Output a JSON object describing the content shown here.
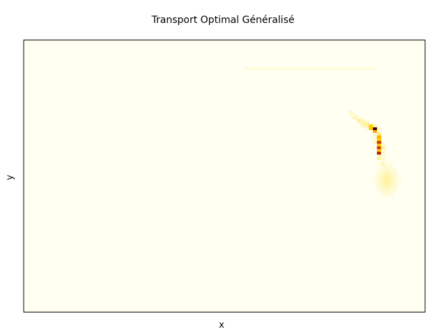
{
  "chart_data": {
    "type": "heatmap",
    "title": "Transport Optimal Généralisé",
    "xlabel": "x",
    "ylabel": "y",
    "ticks": false,
    "colormap": "hot_r",
    "colors": {
      "background": "#fffff2",
      "frame": "#000000",
      "ramp": [
        "#fffff0",
        "#fff19a",
        "#ffd000",
        "#ff8c00",
        "#cc1f00",
        "#6b0000",
        "#000000"
      ]
    },
    "grid_size": [
      100,
      100
    ],
    "max_value": 1.0,
    "features": [
      {
        "kind": "spot",
        "x": 88.8,
        "y": 60.8,
        "intensity": 1.0
      },
      {
        "kind": "spot",
        "x": 88.7,
        "y": 58.8,
        "intensity": 0.95
      },
      {
        "kind": "spot",
        "x": 88.3,
        "y": 62.8,
        "intensity": 0.85
      },
      {
        "kind": "spot",
        "x": 88.3,
        "y": 64.8,
        "intensity": 0.55
      },
      {
        "kind": "spot",
        "x": 87.7,
        "y": 66.8,
        "intensity": 0.35
      },
      {
        "kind": "spot",
        "x": 87.6,
        "y": 67.4,
        "intensity": 0.8
      },
      {
        "kind": "spot",
        "x": 86.3,
        "y": 68.0,
        "intensity": 0.6
      },
      {
        "kind": "spot",
        "x": 85.0,
        "y": 69.1,
        "intensity": 0.45
      },
      {
        "kind": "spot",
        "x": 83.9,
        "y": 70.5,
        "intensity": 0.3
      },
      {
        "kind": "spot",
        "x": 82.6,
        "y": 71.8,
        "intensity": 0.18
      },
      {
        "kind": "spot",
        "x": 81.5,
        "y": 73.2,
        "intensity": 0.1
      },
      {
        "kind": "spot",
        "x": 88.8,
        "y": 56.8,
        "intensity": 0.25
      },
      {
        "kind": "spot",
        "x": 89.3,
        "y": 54.7,
        "intensity": 0.12
      },
      {
        "kind": "blob",
        "x": 90.5,
        "y": 48.5,
        "intensity": 0.15
      },
      {
        "kind": "band",
        "x_from": 55,
        "x_to": 88,
        "y": 89.5,
        "intensity": 0.04
      }
    ]
  }
}
